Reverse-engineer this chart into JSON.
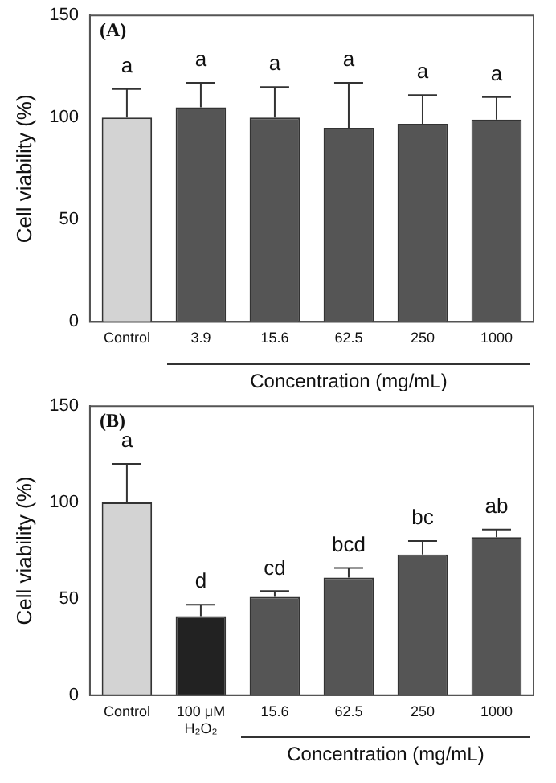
{
  "chart_data": [
    {
      "type": "bar",
      "ylabel": "Cell viability (%)",
      "xlabel": "Concentration (mg/mL)",
      "categories": [
        "Control",
        "3.9",
        "15.6",
        "62.5",
        "250",
        "1000"
      ],
      "values": [
        100,
        105,
        100,
        95,
        97,
        99
      ],
      "errors": [
        14,
        12,
        15,
        22,
        14,
        11
      ],
      "colors": [
        "#d3d3d3",
        "#555555",
        "#555555",
        "#555555",
        "#555555",
        "#555555"
      ],
      "ylim": [
        0,
        150
      ],
      "yticks": [
        0,
        50,
        100,
        150
      ],
      "grid": false,
      "annotations": [
        "(A)",
        "a",
        "a",
        "a",
        "a",
        "a",
        "a"
      ]
    },
    {
      "type": "bar",
      "ylabel": "Cell viability (%)",
      "xlabel": "Concentration (mg/mL)",
      "categories": [
        "Control",
        "100 μM H₂O₂",
        "15.6",
        "62.5",
        "250",
        "1000"
      ],
      "values": [
        100,
        41,
        51,
        61,
        73,
        82
      ],
      "errors": [
        20,
        6,
        3,
        5,
        7,
        4
      ],
      "colors": [
        "#d3d3d3",
        "#222222",
        "#555555",
        "#555555",
        "#555555",
        "#555555"
      ],
      "ylim": [
        0,
        150
      ],
      "yticks": [
        0,
        50,
        100,
        150
      ],
      "grid": false,
      "annotations": [
        "(B)",
        "a",
        "d",
        "cd",
        "bcd",
        "bc",
        "ab"
      ]
    }
  ]
}
